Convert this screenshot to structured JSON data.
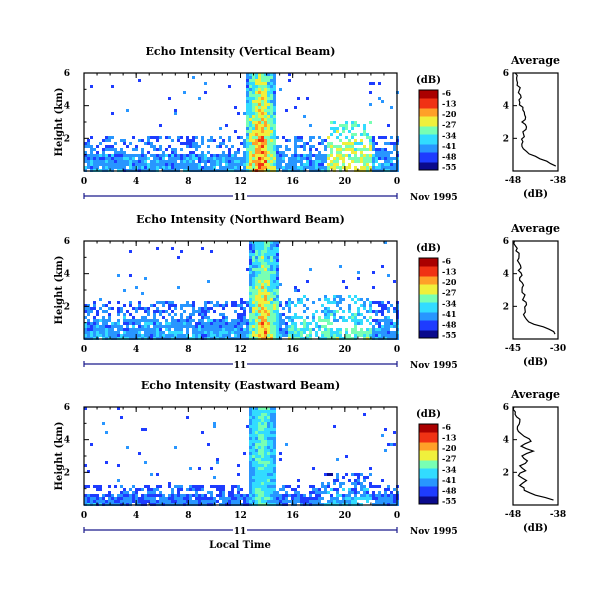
{
  "figure": {
    "day_label": "11",
    "date_label": "Nov 1995",
    "time_axis_label": "Local Time"
  },
  "chart_data": [
    {
      "type": "heatmap",
      "title": "Echo Intensity (Vertical Beam)",
      "ylabel": "Height (km)",
      "xlabel": "Local Time",
      "x_ticks": [
        "0",
        "4",
        "8",
        "12",
        "16",
        "20",
        "0"
      ],
      "x_range": [
        0,
        24
      ],
      "y_ticks": [
        "2",
        "4",
        "6"
      ],
      "y_range": [
        0,
        6
      ],
      "colorbar": {
        "label": "(dB)",
        "ticks": [
          "-6",
          "-13",
          "-20",
          "-27",
          "-34",
          "-41",
          "-48",
          "-55"
        ],
        "range": [
          -55,
          -6
        ]
      },
      "colors": [
        "#0a0a8c",
        "#1e3cff",
        "#2896ff",
        "#32dcff",
        "#78ffb4",
        "#f0f03c",
        "#ffa028",
        "#f03214",
        "#aa0000"
      ],
      "background_echo": {
        "height_top_km": 2.2,
        "typical_db": -44
      },
      "strong_echo": {
        "time_start_h": 12.3,
        "time_end_h": 14.6,
        "height_top_km": 6,
        "peak_db": -8
      },
      "recovery_echo": {
        "time_start_h": 18.5,
        "time_end_h": 22,
        "height_top_km": 3.2,
        "typical_db": -34
      },
      "average_profile": {
        "title": "Average",
        "xlabel": "(dB)",
        "x_ticks": [
          "-48",
          "-38"
        ],
        "x_range": [
          -48,
          -38
        ],
        "y_ticks": [
          "2",
          "4",
          "6"
        ],
        "heights": [
          0.3,
          0.6,
          0.9,
          1.2,
          1.5,
          1.8,
          2.1,
          2.4,
          2.7,
          3.0,
          3.3,
          3.6,
          3.9,
          4.2,
          4.5,
          4.8,
          5.1,
          5.4,
          5.7,
          6.0
        ],
        "values": [
          -38.5,
          -40.5,
          -43,
          -45,
          -46,
          -45.8,
          -45.5,
          -45.8,
          -45,
          -46,
          -45.2,
          -45.5,
          -45.8,
          -46.5,
          -46.2,
          -46.8,
          -46.4,
          -47,
          -47.2,
          -47.5
        ]
      }
    },
    {
      "type": "heatmap",
      "title": "Echo Intensity (Northward Beam)",
      "ylabel": "Height (km)",
      "xlabel": "Local Time",
      "x_ticks": [
        "0",
        "4",
        "8",
        "12",
        "16",
        "20",
        "0"
      ],
      "x_range": [
        0,
        24
      ],
      "y_ticks": [
        "2",
        "4",
        "6"
      ],
      "y_range": [
        0,
        6
      ],
      "colorbar": {
        "label": "(dB)",
        "ticks": [
          "-6",
          "-13",
          "-20",
          "-27",
          "-34",
          "-41",
          "-48",
          "-55"
        ],
        "range": [
          -55,
          -6
        ]
      },
      "colors": [
        "#0a0a8c",
        "#1e3cff",
        "#2896ff",
        "#32dcff",
        "#78ffb4",
        "#f0f03c",
        "#ffa028",
        "#f03214",
        "#aa0000"
      ],
      "background_echo": {
        "height_top_km": 2.4,
        "typical_db": -44
      },
      "strong_echo": {
        "time_start_h": 12.5,
        "time_end_h": 14.8,
        "height_top_km": 6,
        "peak_db": -10
      },
      "recovery_echo": {
        "time_start_h": 15.5,
        "time_end_h": 22,
        "height_top_km": 2.8,
        "typical_db": -40
      },
      "average_profile": {
        "title": "Average",
        "xlabel": "(dB)",
        "x_ticks": [
          "-45",
          "-30"
        ],
        "x_range": [
          -45,
          -30
        ],
        "y_ticks": [
          "2",
          "4",
          "6"
        ],
        "heights": [
          0.3,
          0.6,
          0.9,
          1.2,
          1.5,
          1.8,
          2.1,
          2.4,
          2.7,
          3.0,
          3.3,
          3.6,
          3.9,
          4.2,
          4.5,
          4.8,
          5.1,
          5.4,
          5.7,
          6.0
        ],
        "values": [
          -31,
          -33,
          -38,
          -40.5,
          -41.5,
          -41,
          -40.5,
          -41.8,
          -41,
          -42,
          -41.5,
          -42.8,
          -42,
          -43.2,
          -42.5,
          -43.5,
          -43,
          -44,
          -44.2,
          -44.5
        ]
      }
    },
    {
      "type": "heatmap",
      "title": "Echo Intensity (Eastward Beam)",
      "ylabel": "Height (km)",
      "xlabel": "Local Time",
      "x_ticks": [
        "0",
        "4",
        "8",
        "12",
        "16",
        "20",
        "0"
      ],
      "x_range": [
        0,
        24
      ],
      "y_ticks": [
        "2",
        "4",
        "6"
      ],
      "y_range": [
        0,
        6
      ],
      "colorbar": {
        "label": "(dB)",
        "ticks": [
          "-6",
          "-13",
          "-20",
          "-27",
          "-34",
          "-41",
          "-48",
          "-55"
        ],
        "range": [
          -55,
          -6
        ]
      },
      "colors": [
        "#0a0a8c",
        "#1e3cff",
        "#2896ff",
        "#32dcff",
        "#78ffb4",
        "#f0f03c",
        "#ffa028",
        "#f03214",
        "#aa0000"
      ],
      "background_echo": {
        "height_top_km": 1.4,
        "typical_db": -46
      },
      "strong_echo": {
        "time_start_h": 12.5,
        "time_end_h": 14.6,
        "height_top_km": 6,
        "peak_db": -30
      },
      "recovery_echo": {
        "time_start_h": 18,
        "time_end_h": 22,
        "height_top_km": 2.0,
        "typical_db": -46
      },
      "average_profile": {
        "title": "Average",
        "xlabel": "(dB)",
        "x_ticks": [
          "-48",
          "-38"
        ],
        "x_range": [
          -48,
          -38
        ],
        "y_ticks": [
          "2",
          "4",
          "6"
        ],
        "heights": [
          0.3,
          0.6,
          0.9,
          1.2,
          1.5,
          1.8,
          2.1,
          2.4,
          2.7,
          3.0,
          3.3,
          3.6,
          3.9,
          4.2,
          4.5,
          4.8,
          5.1,
          5.4,
          5.7,
          6.0
        ],
        "values": [
          -39,
          -43,
          -45.5,
          -46.5,
          -45,
          -46.8,
          -45.2,
          -46.5,
          -44.8,
          -46,
          -43.5,
          -46.2,
          -44,
          -45.5,
          -46.8,
          -47,
          -46.5,
          -47.2,
          -47.5,
          -47.8
        ]
      }
    }
  ]
}
